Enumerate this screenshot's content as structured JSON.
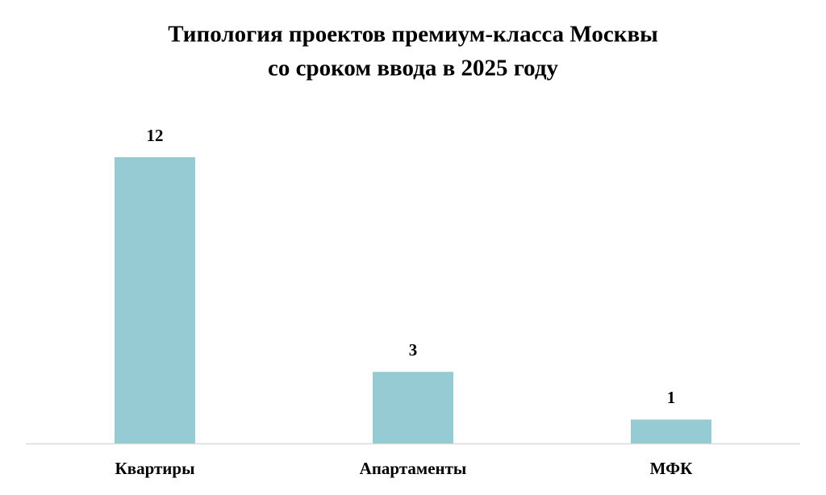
{
  "chart_data": {
    "type": "bar",
    "title": [
      "Типология проектов премиум-класса Москвы",
      "со сроком ввода в 2025 году"
    ],
    "categories": [
      "Квартиры",
      "Апартаменты",
      "МФК"
    ],
    "values": [
      12,
      3,
      1
    ],
    "color": "#96cbd4"
  }
}
